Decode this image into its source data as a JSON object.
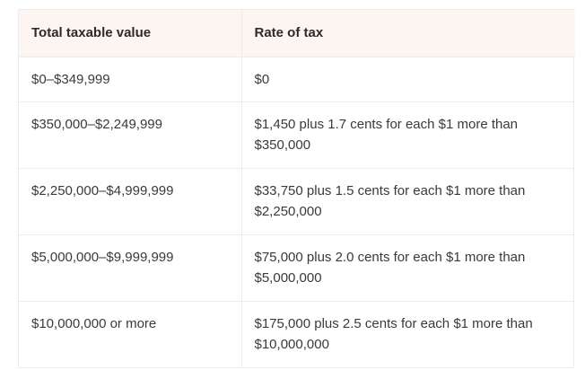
{
  "table": {
    "headers": [
      "Total taxable value",
      "Rate of tax"
    ],
    "rows": [
      [
        "$0–$349,999",
        "$0"
      ],
      [
        "$350,000–$2,249,999",
        "$1,450 plus 1.7 cents for each $1 more than $350,000"
      ],
      [
        "$2,250,000–$4,999,999",
        "$33,750 plus 1.5 cents for each $1 more than $2,250,000"
      ],
      [
        "$5,000,000–$9,999,999",
        "$75,000 plus 2.0 cents for each $1 more than $5,000,000"
      ],
      [
        "$10,000,000 or more",
        "$175,000 plus 2.5 cents for each $1 more than $10,000,000"
      ]
    ]
  },
  "colors": {
    "header_background": "#fcf5f1",
    "border": "#ececec",
    "text": "#3a3a3a"
  }
}
